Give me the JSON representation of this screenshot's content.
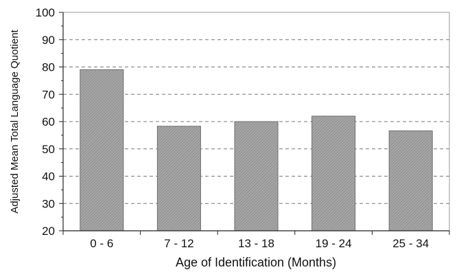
{
  "chart_data": {
    "type": "bar",
    "title": "",
    "xlabel": "Age of Identification (Months)",
    "ylabel": "Adjusted Mean Total Language Quotient",
    "categories": [
      "0 - 6",
      "7 - 12",
      "13 - 18",
      "19 - 24",
      "25 - 34"
    ],
    "values": [
      79,
      58.3,
      60,
      62,
      56.6
    ],
    "ylim": [
      20,
      100
    ],
    "yticks": [
      20,
      30,
      40,
      50,
      60,
      70,
      80,
      90,
      100
    ],
    "ytick_labels": [
      "20",
      "30",
      "40",
      "50",
      "60",
      "70",
      "80",
      "90",
      "100"
    ],
    "grid": "horizontal dashed",
    "legend": "none",
    "colors": {
      "bar_fill": "#9a9a9a",
      "bar_stroke": "#6e6e6e",
      "grid": "#777777",
      "axis": "#222222"
    }
  }
}
